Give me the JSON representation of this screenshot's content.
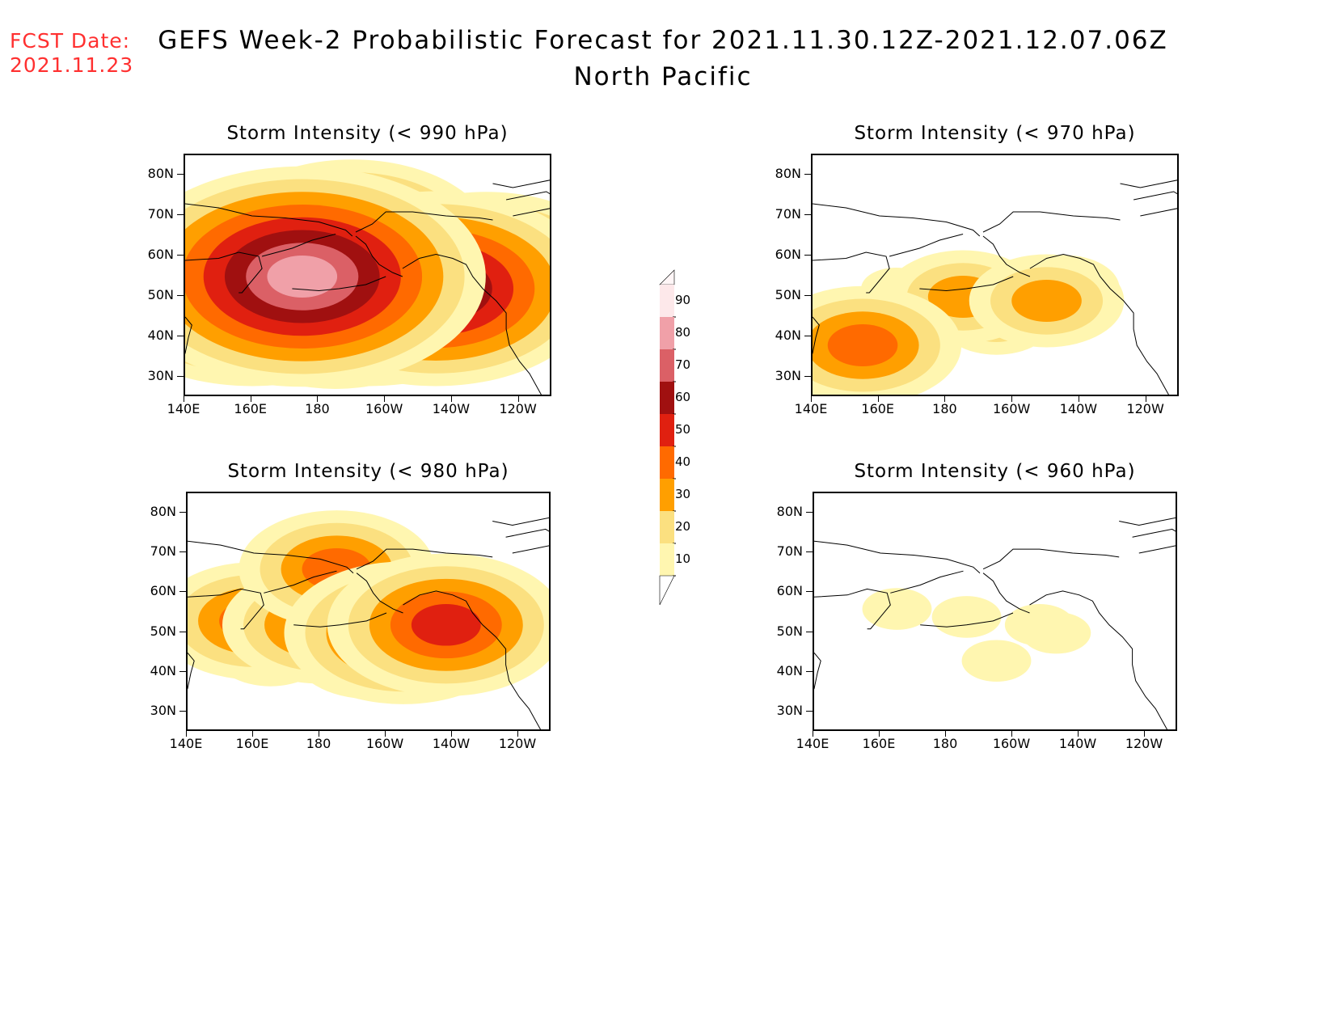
{
  "header": {
    "fcst_label": "FCST Date:",
    "fcst_date": "2021.11.23",
    "title": "GEFS Week-2 Probabilistic Forecast for 2021.11.30.12Z-2021.12.07.06Z",
    "subtitle": "North Pacific"
  },
  "axes": {
    "lat_labels": [
      "80N",
      "70N",
      "60N",
      "50N",
      "40N",
      "30N"
    ],
    "lon_labels": [
      "140E",
      "160E",
      "180",
      "160W",
      "140W",
      "120W"
    ]
  },
  "panels": [
    {
      "id": "p990",
      "title": "Storm Intensity (< 990 hPa)"
    },
    {
      "id": "p970",
      "title": "Storm Intensity (< 970 hPa)"
    },
    {
      "id": "p980",
      "title": "Storm Intensity (< 980 hPa)"
    },
    {
      "id": "p960",
      "title": "Storm Intensity (< 960 hPa)"
    }
  ],
  "colorbar": {
    "labels": [
      "90",
      "80",
      "70",
      "60",
      "50",
      "40",
      "30",
      "20",
      "10"
    ],
    "colors": [
      "#fde8ea",
      "#f0a0a8",
      "#db6066",
      "#a01010",
      "#e02010",
      "#ff6a00",
      "#ff9f00",
      "#fbe080",
      "#fff6b0"
    ]
  },
  "chart_data": {
    "type": "heatmap",
    "x_axis": "longitude",
    "y_axis": "latitude",
    "xlim": [
      "140E",
      "110W"
    ],
    "ylim": [
      "25N",
      "85N"
    ],
    "levels": [
      10,
      20,
      30,
      40,
      50,
      60,
      70,
      80,
      90
    ],
    "blobs_note_units": "probability (%)",
    "fields": {
      "p990": [
        {
          "lon": 175,
          "lat": 55,
          "value": 80
        },
        {
          "lon": 195,
          "lat": 52,
          "value": 72
        },
        {
          "lon": 215,
          "lat": 52,
          "value": 78
        },
        {
          "lon": 160,
          "lat": 52,
          "value": 75
        },
        {
          "lon": 230,
          "lat": 55,
          "value": 68
        },
        {
          "lon": 185,
          "lat": 45,
          "value": 50
        },
        {
          "lon": 205,
          "lat": 44,
          "value": 45
        },
        {
          "lon": 165,
          "lat": 42,
          "value": 35
        },
        {
          "lon": 245,
          "lat": 52,
          "value": 45
        },
        {
          "lon": 190,
          "lat": 63,
          "value": 60
        }
      ],
      "p980": [
        {
          "lon": 160,
          "lat": 53,
          "value": 40
        },
        {
          "lon": 180,
          "lat": 52,
          "value": 45
        },
        {
          "lon": 205,
          "lat": 50,
          "value": 50
        },
        {
          "lon": 218,
          "lat": 52,
          "value": 55
        },
        {
          "lon": 195,
          "lat": 45,
          "value": 30
        },
        {
          "lon": 165,
          "lat": 45,
          "value": 25
        },
        {
          "lon": 185,
          "lat": 66,
          "value": 45
        }
      ],
      "p970": [
        {
          "lon": 180,
          "lat": 52,
          "value": 25
        },
        {
          "lon": 185,
          "lat": 50,
          "value": 35
        },
        {
          "lon": 215,
          "lat": 52,
          "value": 25
        },
        {
          "lon": 210,
          "lat": 49,
          "value": 35
        },
        {
          "lon": 165,
          "lat": 52,
          "value": 15
        },
        {
          "lon": 195,
          "lat": 44,
          "value": 20
        },
        {
          "lon": 155,
          "lat": 38,
          "value": 40
        }
      ],
      "p960": [
        {
          "lon": 165,
          "lat": 56,
          "value": 15
        },
        {
          "lon": 186,
          "lat": 54,
          "value": 12
        },
        {
          "lon": 208,
          "lat": 52,
          "value": 15
        },
        {
          "lon": 213,
          "lat": 50,
          "value": 12
        },
        {
          "lon": 195,
          "lat": 43,
          "value": 12
        }
      ]
    }
  }
}
